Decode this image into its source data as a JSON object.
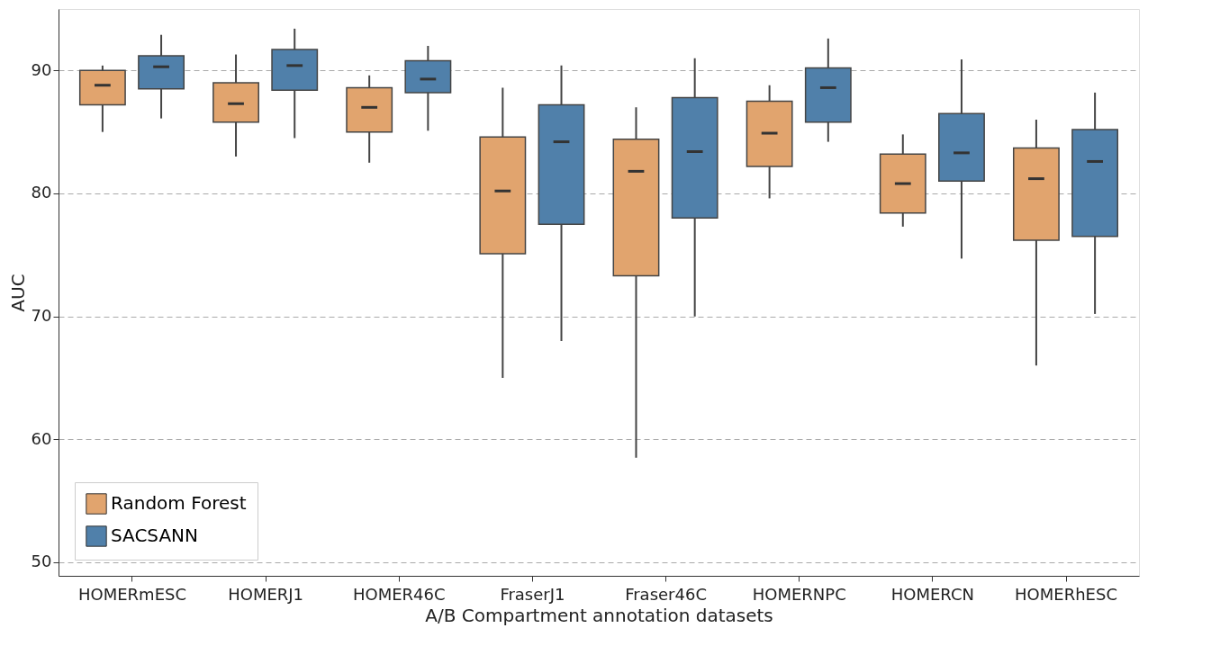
{
  "chart_data": {
    "type": "box",
    "xlabel": "A/B Compartment annotation datasets",
    "ylabel": "AUC",
    "categories": [
      "HOMERmESC",
      "HOMERJ1",
      "HOMER46C",
      "FraserJ1",
      "Fraser46C",
      "HOMERNPC",
      "HOMERCN",
      "HOMERhESC"
    ],
    "ylim": [
      48.9,
      95.0
    ],
    "yticks": [
      50,
      60,
      70,
      80,
      90
    ],
    "grid": "y",
    "legend": "bottom left",
    "series": [
      {
        "name": "Random Forest",
        "color": "#e1a46e",
        "boxes": [
          {
            "low": 85.0,
            "q1": 87.2,
            "median": 88.8,
            "q3": 90.0,
            "high": 90.4
          },
          {
            "low": 83.0,
            "q1": 85.8,
            "median": 87.3,
            "q3": 89.0,
            "high": 91.3
          },
          {
            "low": 82.5,
            "q1": 85.0,
            "median": 87.0,
            "q3": 88.6,
            "high": 89.6
          },
          {
            "low": 65.0,
            "q1": 75.1,
            "median": 80.2,
            "q3": 84.6,
            "high": 88.6
          },
          {
            "low": 58.5,
            "q1": 73.3,
            "median": 81.8,
            "q3": 84.4,
            "high": 87.0
          },
          {
            "low": 79.6,
            "q1": 82.2,
            "median": 84.9,
            "q3": 87.5,
            "high": 88.8
          },
          {
            "low": 77.3,
            "q1": 78.4,
            "median": 80.8,
            "q3": 83.2,
            "high": 84.8
          },
          {
            "low": 66.0,
            "q1": 76.2,
            "median": 81.2,
            "q3": 83.7,
            "high": 86.0
          }
        ]
      },
      {
        "name": "SACSANN",
        "color": "#5080aa",
        "boxes": [
          {
            "low": 86.1,
            "q1": 88.5,
            "median": 90.3,
            "q3": 91.2,
            "high": 92.9
          },
          {
            "low": 84.5,
            "q1": 88.4,
            "median": 90.4,
            "q3": 91.7,
            "high": 93.4
          },
          {
            "low": 85.1,
            "q1": 88.2,
            "median": 89.3,
            "q3": 90.8,
            "high": 92.0
          },
          {
            "low": 68.0,
            "q1": 77.5,
            "median": 84.2,
            "q3": 87.2,
            "high": 90.4
          },
          {
            "low": 70.0,
            "q1": 78.0,
            "median": 83.4,
            "q3": 87.8,
            "high": 91.0
          },
          {
            "low": 84.2,
            "q1": 85.8,
            "median": 88.6,
            "q3": 90.2,
            "high": 92.6
          },
          {
            "low": 74.7,
            "q1": 81.0,
            "median": 83.3,
            "q3": 86.5,
            "high": 90.9
          },
          {
            "low": 70.2,
            "q1": 76.5,
            "median": 82.6,
            "q3": 85.2,
            "high": 88.2
          }
        ]
      }
    ]
  }
}
